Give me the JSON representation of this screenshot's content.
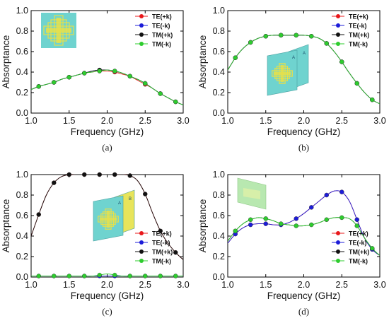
{
  "colors": {
    "TE(+k)": "#e8181b",
    "TE(-k)": "#1c1cd8",
    "TM(+k)": "#111111",
    "TM(-k)": "#2ecc2e"
  },
  "chart_data": [
    {
      "type": "line",
      "label": "(a)",
      "xlabel": "Frequency (GHz)",
      "ylabel": "Absorptance",
      "xlim": [
        1.0,
        3.0
      ],
      "ylim": [
        0.0,
        1.0
      ],
      "xticks": [
        "1.0",
        "1.5",
        "2.0",
        "2.5",
        "3.0"
      ],
      "yticks": [
        "0.0",
        "0.2",
        "0.4",
        "0.6",
        "0.8",
        "1.0"
      ],
      "legend": [
        "TE(+k)",
        "TE(-k)",
        "TM(+k)",
        "TM(-k)"
      ],
      "legend_position": "top-right",
      "inset": "top-left",
      "inset_type": "unit-cell",
      "x": [
        1.0,
        1.1,
        1.2,
        1.3,
        1.4,
        1.5,
        1.6,
        1.7,
        1.8,
        1.9,
        2.0,
        2.1,
        2.2,
        2.3,
        2.4,
        2.5,
        2.6,
        2.7,
        2.8,
        2.9,
        3.0
      ],
      "series": [
        {
          "name": "TE(+k)",
          "values": [
            0.23,
            0.26,
            0.28,
            0.3,
            0.33,
            0.35,
            0.37,
            0.39,
            0.4,
            0.41,
            0.41,
            0.4,
            0.38,
            0.36,
            0.32,
            0.28,
            0.24,
            0.19,
            0.15,
            0.11,
            0.08
          ]
        },
        {
          "name": "TE(-k)",
          "values": [
            0.23,
            0.26,
            0.28,
            0.3,
            0.33,
            0.35,
            0.37,
            0.39,
            0.41,
            0.42,
            0.42,
            0.41,
            0.39,
            0.36,
            0.33,
            0.29,
            0.24,
            0.19,
            0.15,
            0.11,
            0.08
          ]
        },
        {
          "name": "TM(+k)",
          "values": [
            0.23,
            0.26,
            0.28,
            0.3,
            0.33,
            0.35,
            0.37,
            0.39,
            0.41,
            0.42,
            0.42,
            0.41,
            0.39,
            0.36,
            0.33,
            0.29,
            0.24,
            0.19,
            0.15,
            0.11,
            0.08
          ]
        },
        {
          "name": "TM(-k)",
          "values": [
            0.23,
            0.26,
            0.28,
            0.3,
            0.33,
            0.35,
            0.37,
            0.39,
            0.4,
            0.41,
            0.42,
            0.41,
            0.39,
            0.36,
            0.33,
            0.29,
            0.24,
            0.19,
            0.15,
            0.11,
            0.08
          ]
        }
      ]
    },
    {
      "type": "line",
      "label": "(b)",
      "xlabel": "Frequency (GHz)",
      "ylabel": "Absorptance",
      "xlim": [
        1.0,
        3.0
      ],
      "ylim": [
        0.0,
        1.0
      ],
      "xticks": [
        "1.0",
        "1.5",
        "2.0",
        "2.5",
        "3.0"
      ],
      "yticks": [
        "0.0",
        "0.2",
        "0.4",
        "0.6",
        "0.8",
        "1.0"
      ],
      "legend": [
        "TE(+k)",
        "TE(-k)",
        "TM(+k)",
        "TM(-k)"
      ],
      "legend_position": "top-right",
      "inset": "center-left",
      "inset_type": "two-layer",
      "inset_text": [
        "A",
        "A"
      ],
      "x": [
        1.0,
        1.1,
        1.2,
        1.3,
        1.4,
        1.5,
        1.6,
        1.7,
        1.8,
        1.9,
        2.0,
        2.1,
        2.2,
        2.3,
        2.4,
        2.5,
        2.6,
        2.7,
        2.8,
        2.9,
        3.0
      ],
      "series": [
        {
          "name": "TE(+k)",
          "values": [
            0.42,
            0.54,
            0.63,
            0.69,
            0.73,
            0.75,
            0.76,
            0.76,
            0.76,
            0.76,
            0.76,
            0.75,
            0.73,
            0.68,
            0.6,
            0.5,
            0.39,
            0.29,
            0.2,
            0.13,
            0.09
          ]
        },
        {
          "name": "TE(-k)",
          "values": [
            0.42,
            0.54,
            0.63,
            0.69,
            0.73,
            0.75,
            0.76,
            0.76,
            0.76,
            0.76,
            0.76,
            0.75,
            0.73,
            0.68,
            0.6,
            0.5,
            0.39,
            0.29,
            0.2,
            0.13,
            0.09
          ]
        },
        {
          "name": "TM(+k)",
          "values": [
            0.42,
            0.54,
            0.63,
            0.69,
            0.73,
            0.75,
            0.76,
            0.76,
            0.76,
            0.76,
            0.76,
            0.75,
            0.73,
            0.68,
            0.6,
            0.5,
            0.39,
            0.29,
            0.2,
            0.13,
            0.09
          ]
        },
        {
          "name": "TM(-k)",
          "values": [
            0.42,
            0.54,
            0.63,
            0.69,
            0.73,
            0.75,
            0.76,
            0.76,
            0.76,
            0.76,
            0.76,
            0.75,
            0.73,
            0.68,
            0.6,
            0.5,
            0.39,
            0.29,
            0.2,
            0.13,
            0.09
          ]
        }
      ]
    },
    {
      "type": "line",
      "label": "(c)",
      "xlabel": "Frequency (GHz)",
      "ylabel": "Absorptance",
      "xlim": [
        1.0,
        3.0
      ],
      "ylim": [
        0.0,
        1.0
      ],
      "xticks": [
        "1.0",
        "1.5",
        "2.0",
        "2.5",
        "3.0"
      ],
      "yticks": [
        "0.0",
        "0.2",
        "0.4",
        "0.6",
        "0.8",
        "1.0"
      ],
      "legend": [
        "TE(+k)",
        "TE(-k)",
        "TM(+k)",
        "TM(-k)"
      ],
      "legend_position": "bottom-right",
      "inset": "center",
      "inset_type": "two-layer",
      "inset_text": [
        "A",
        "B"
      ],
      "x": [
        1.0,
        1.1,
        1.2,
        1.3,
        1.4,
        1.5,
        1.6,
        1.7,
        1.8,
        1.9,
        2.0,
        2.1,
        2.2,
        2.3,
        2.4,
        2.5,
        2.6,
        2.7,
        2.8,
        2.9,
        3.0
      ],
      "series": [
        {
          "name": "TE(+k)",
          "values": [
            0.4,
            0.61,
            0.8,
            0.92,
            0.98,
            1.0,
            1.0,
            1.0,
            1.0,
            1.0,
            1.0,
            1.0,
            1.0,
            0.99,
            0.94,
            0.81,
            0.62,
            0.45,
            0.33,
            0.24,
            0.17
          ]
        },
        {
          "name": "TE(-k)",
          "values": [
            0.01,
            0.01,
            0.01,
            0.01,
            0.01,
            0.01,
            0.01,
            0.01,
            0.01,
            0.01,
            0.01,
            0.01,
            0.01,
            0.01,
            0.01,
            0.01,
            0.01,
            0.01,
            0.01,
            0.01,
            0.01
          ]
        },
        {
          "name": "TM(+k)",
          "values": [
            0.4,
            0.61,
            0.8,
            0.92,
            0.98,
            1.0,
            1.0,
            1.0,
            1.0,
            1.0,
            1.0,
            1.0,
            1.0,
            0.99,
            0.94,
            0.81,
            0.62,
            0.45,
            0.33,
            0.24,
            0.17
          ]
        },
        {
          "name": "TM(-k)",
          "values": [
            0.01,
            0.01,
            0.01,
            0.01,
            0.01,
            0.01,
            0.01,
            0.01,
            0.01,
            0.02,
            0.03,
            0.02,
            0.01,
            0.01,
            0.01,
            0.01,
            0.01,
            0.01,
            0.01,
            0.01,
            0.01
          ]
        }
      ]
    },
    {
      "type": "line",
      "label": "(d)",
      "xlabel": "Frequency (GHz)",
      "ylabel": "Absorptance",
      "xlim": [
        1.0,
        3.0
      ],
      "ylim": [
        0.0,
        1.0
      ],
      "xticks": [
        "1.0",
        "1.5",
        "2.0",
        "2.5",
        "3.0"
      ],
      "yticks": [
        "0.0",
        "0.2",
        "0.4",
        "0.6",
        "0.8",
        "1.0"
      ],
      "legend": [
        "TE(+k)",
        "TE(-k)",
        "TM(+k)",
        "TM(-k)"
      ],
      "legend_position": "bottom-right",
      "inset": "top-left",
      "inset_type": "plate",
      "x": [
        1.0,
        1.1,
        1.2,
        1.3,
        1.4,
        1.5,
        1.6,
        1.7,
        1.8,
        1.9,
        2.0,
        2.1,
        2.2,
        2.3,
        2.4,
        2.5,
        2.6,
        2.7,
        2.8,
        2.9,
        3.0
      ],
      "series": [
        {
          "name": "TE(+k)",
          "values": [
            0.33,
            0.42,
            0.48,
            0.51,
            0.52,
            0.52,
            0.51,
            0.51,
            0.53,
            0.57,
            0.62,
            0.68,
            0.74,
            0.8,
            0.84,
            0.83,
            0.74,
            0.56,
            0.38,
            0.27,
            0.21
          ]
        },
        {
          "name": "TE(-k)",
          "values": [
            0.33,
            0.42,
            0.48,
            0.51,
            0.52,
            0.52,
            0.51,
            0.51,
            0.53,
            0.57,
            0.62,
            0.68,
            0.74,
            0.8,
            0.84,
            0.83,
            0.74,
            0.56,
            0.38,
            0.27,
            0.21
          ]
        },
        {
          "name": "TM(+k)",
          "values": [
            0.35,
            0.45,
            0.52,
            0.56,
            0.58,
            0.57,
            0.55,
            0.52,
            0.51,
            0.5,
            0.5,
            0.51,
            0.53,
            0.56,
            0.58,
            0.58,
            0.57,
            0.5,
            0.38,
            0.28,
            0.21
          ]
        },
        {
          "name": "TM(-k)",
          "values": [
            0.35,
            0.45,
            0.52,
            0.56,
            0.58,
            0.57,
            0.55,
            0.52,
            0.51,
            0.5,
            0.5,
            0.51,
            0.53,
            0.56,
            0.58,
            0.58,
            0.57,
            0.5,
            0.38,
            0.28,
            0.21
          ]
        }
      ]
    }
  ]
}
